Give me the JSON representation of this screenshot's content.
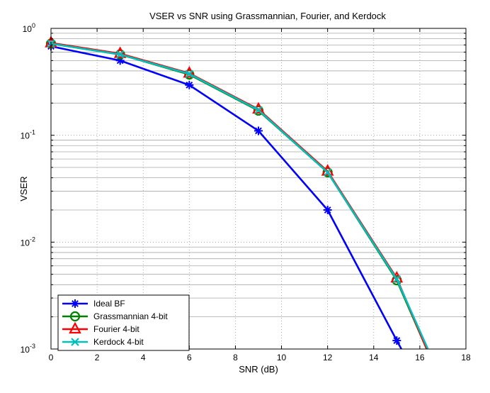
{
  "chart_data": {
    "type": "line",
    "title": "VSER vs SNR using Grassmannian, Fourier, and Kerdock",
    "xlabel": "SNR (dB)",
    "ylabel": "VSER",
    "xlim": [
      0,
      18
    ],
    "ylim": [
      0.001,
      1
    ],
    "yscale": "log",
    "grid": true,
    "legend_position": "bottom-left",
    "xticks": [
      "0",
      "2",
      "4",
      "6",
      "8",
      "10",
      "12",
      "14",
      "16",
      "18"
    ],
    "yticks": [
      {
        "base": "10",
        "exp": "0",
        "value": 1
      },
      {
        "base": "10",
        "exp": "-1",
        "value": 0.1
      },
      {
        "base": "10",
        "exp": "-2",
        "value": 0.01
      },
      {
        "base": "10",
        "exp": "-3",
        "value": 0.001
      }
    ],
    "series": [
      {
        "name": "Ideal BF",
        "color": "#0000ff",
        "marker": "asterisk",
        "x": [
          0,
          3,
          6,
          9,
          12,
          15,
          15.2
        ],
        "y": [
          0.68,
          0.5,
          0.295,
          0.11,
          0.02,
          0.0012,
          0.001
        ]
      },
      {
        "name": "Grassmannian 4-bit",
        "color": "#008000",
        "marker": "circle",
        "x": [
          0,
          3,
          6,
          9,
          12,
          15,
          16.3
        ],
        "y": [
          0.72,
          0.57,
          0.37,
          0.17,
          0.045,
          0.0044,
          0.001
        ]
      },
      {
        "name": "Fourier 4-bit",
        "color": "#ff0000",
        "marker": "triangle",
        "x": [
          0,
          3,
          6,
          9,
          12,
          15,
          16.3
        ],
        "y": [
          0.73,
          0.58,
          0.38,
          0.175,
          0.046,
          0.0046,
          0.001
        ]
      },
      {
        "name": "Kerdock 4-bit",
        "color": "#00bfbf",
        "marker": "x",
        "x": [
          0,
          3,
          6,
          9,
          12,
          15,
          16.35
        ],
        "y": [
          0.72,
          0.57,
          0.375,
          0.172,
          0.045,
          0.0045,
          0.001
        ]
      }
    ]
  }
}
